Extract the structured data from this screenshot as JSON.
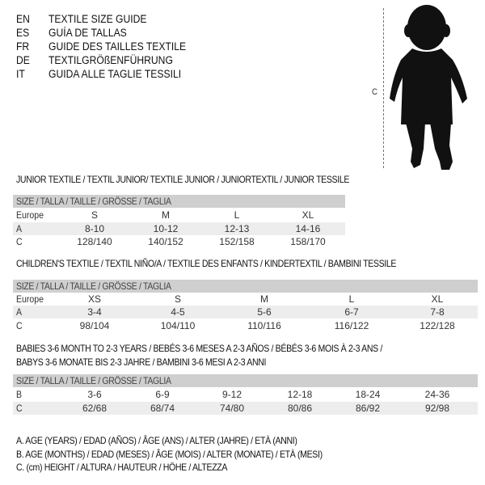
{
  "header": {
    "languages": [
      {
        "code": "EN",
        "name": "TEXTILE SIZE GUIDE"
      },
      {
        "code": "ES",
        "name": "GUÍA DE TALLAS"
      },
      {
        "code": "FR",
        "name": "GUIDE DES TAILLES TEXTILE"
      },
      {
        "code": "DE",
        "name": "TEXTILGRÖßENFÜHRUNG"
      },
      {
        "code": "IT",
        "name": "GUIDA ALLE TAGLIE TESSILI"
      }
    ],
    "figure_label": "C"
  },
  "tables": [
    {
      "title": "JUNIOR TEXTILE / TEXTIL JUNIOR/ TEXTILE JUNIOR / JUNIORTEXTIL / JUNIOR TESSILE",
      "header": "SIZE / TALLA / TAILLE / GRÖSSE / TAGLIA",
      "rows": [
        {
          "label": "Europe",
          "values": [
            "S",
            "M",
            "L",
            "XL"
          ]
        },
        {
          "label": "A",
          "values": [
            "8-10",
            "10-12",
            "12-13",
            "14-16"
          ]
        },
        {
          "label": "C",
          "values": [
            "128/140",
            "140/152",
            "152/158",
            "158/170"
          ]
        }
      ]
    },
    {
      "title": "CHILDREN'S TEXTILE / TEXTIL NIÑO/A / TEXTILE DES ENFANTS / KINDERTEXTIL / BAMBINI TESSILE",
      "header": "SIZE / TALLA / TAILLE / GRÖSSE / TAGLIA",
      "rows": [
        {
          "label": "Europe",
          "values": [
            "XS",
            "S",
            "M",
            "L",
            "XL"
          ]
        },
        {
          "label": "A",
          "values": [
            "3-4",
            "4-5",
            "5-6",
            "6-7",
            "7-8"
          ]
        },
        {
          "label": "C",
          "values": [
            "98/104",
            "104/110",
            "110/116",
            "116/122",
            "122/128"
          ]
        }
      ]
    },
    {
      "title": "BABIES 3-6 MONTH TO 2-3 YEARS / BEBÉS 3-6 MESES A 2-3 AÑOS / BÉBÉS 3-6 MOIS À 2-3 ANS /",
      "title2": "BABYS 3-6 MONATE BIS 2-3 JAHRE / BAMBINI 3-6 MESI A 2-3 ANNI",
      "header": "SIZE / TALLA / TAILLE / GRÖSSE / TAGLIA",
      "rows": [
        {
          "label": "B",
          "values": [
            "3-6",
            "6-9",
            "9-12",
            "12-18",
            "18-24",
            "24-36"
          ]
        },
        {
          "label": "C",
          "values": [
            "62/68",
            "68/74",
            "74/80",
            "80/86",
            "86/92",
            "92/98"
          ]
        }
      ]
    }
  ],
  "legend": [
    "A. AGE (YEARS) / EDAD (AÑOS) / ÂGE (ANS) / ALTER (JAHRE) / ETÀ (ANNI)",
    "B. AGE (MONTHS) / EDAD (MESES) / ÂGE (MOIS) / ALTER (MONATE) / ETÀ (MESI)",
    "C. (cm) HEIGHT / ALTURA / HAUTEUR / HÖHE / ALTEZZA"
  ]
}
